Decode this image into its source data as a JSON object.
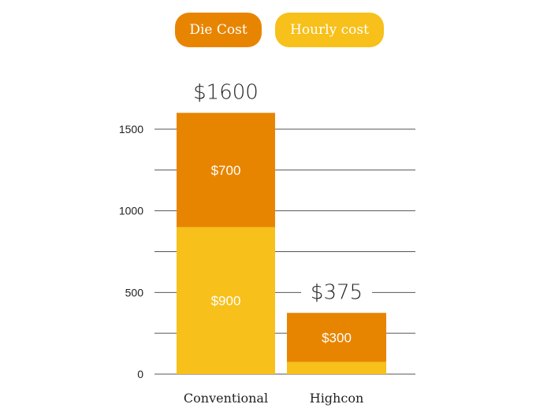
{
  "colors": {
    "die": "#E88500",
    "hourly": "#F7C01A",
    "grid": "#555555"
  },
  "legend": [
    {
      "label": "Die Cost",
      "color": "#E88500"
    },
    {
      "label": "Hourly cost",
      "color": "#F7C01A"
    }
  ],
  "chart_data": {
    "type": "bar",
    "stacked": true,
    "categories": [
      "Conventional",
      "Highcon"
    ],
    "series": [
      {
        "name": "Hourly cost",
        "values": [
          900,
          75
        ],
        "labels": [
          "$900",
          ""
        ]
      },
      {
        "name": "Die Cost",
        "values": [
          700,
          300
        ],
        "labels": [
          "$700",
          "$300"
        ]
      }
    ],
    "totals": [
      "$1600",
      "$375"
    ],
    "ylim": [
      0,
      1600
    ],
    "yticks": [
      0,
      500,
      1000,
      1500
    ],
    "grid": true,
    "legend_position": "top-center",
    "title": "",
    "xlabel": "",
    "ylabel": ""
  }
}
